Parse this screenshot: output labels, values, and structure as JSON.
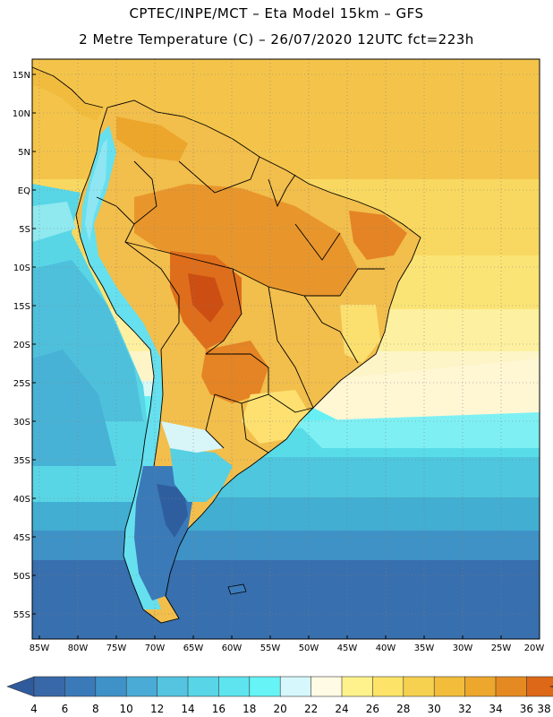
{
  "title_line1": "CPTEC/INPE/MCT –  Eta Model 15km – GFS",
  "title_line2": "2 Metre Temperature (C) – 26/07/2020 12UTC fct=223h",
  "lat_labels": [
    "15N",
    "10N",
    "5N",
    "EQ",
    "5S",
    "10S",
    "15S",
    "20S",
    "25S",
    "30S",
    "35S",
    "40S",
    "45S",
    "50S",
    "55S"
  ],
  "lon_labels": [
    "85W",
    "80W",
    "75W",
    "70W",
    "65W",
    "60W",
    "55W",
    "50W",
    "45W",
    "40W",
    "35W",
    "30W",
    "25W",
    "20W"
  ],
  "colorbar": {
    "labels": [
      "4",
      "6",
      "8",
      "10",
      "12",
      "14",
      "16",
      "18",
      "20",
      "22",
      "24",
      "26",
      "28",
      "30",
      "32",
      "34",
      "36",
      "38"
    ],
    "colors": [
      "#3868a8",
      "#3a7ab8",
      "#3f92c8",
      "#4aacd6",
      "#55c4e0",
      "#58d6e8",
      "#5ee4ef",
      "#66f4f6",
      "#d6f8fc",
      "#fffbe4",
      "#fff28c",
      "#fde468",
      "#f6d14f",
      "#f1bd3b",
      "#eca72c",
      "#e58a22",
      "#dd6818",
      "#c84510",
      "#b03808"
    ],
    "under_color": "#2f5a9c",
    "over_color": "#b03808"
  }
}
